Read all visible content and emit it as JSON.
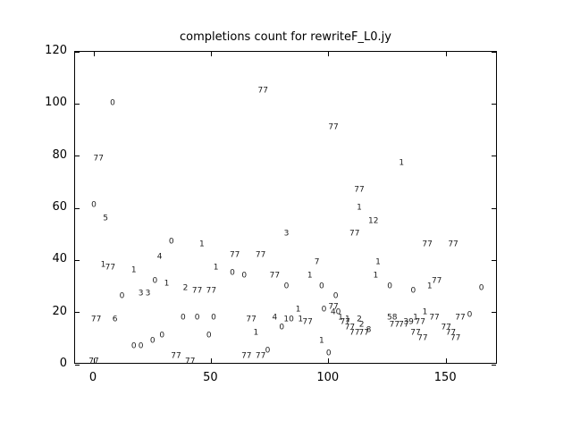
{
  "chart_data": {
    "type": "scatter",
    "title": "completions count for rewriteF_L0.jy",
    "xlabel": "",
    "ylabel": "",
    "xlim": [
      -8,
      172
    ],
    "ylim": [
      0,
      120
    ],
    "xticks": [
      0,
      50,
      100,
      150
    ],
    "yticks": [
      0,
      20,
      40,
      60,
      80,
      100,
      120
    ],
    "grid": false,
    "legend": "none",
    "marker_style": "text-label",
    "colors": {
      "text": "#000000",
      "marker": "#1a1a1a",
      "background": "#ffffff"
    },
    "points": [
      [
        2,
        79,
        "77"
      ],
      [
        8,
        100,
        "0"
      ],
      [
        0,
        61,
        "0"
      ],
      [
        5,
        56,
        "5"
      ],
      [
        4,
        38,
        "1"
      ],
      [
        7,
        37,
        "77"
      ],
      [
        12,
        26,
        "0"
      ],
      [
        1,
        17,
        "77"
      ],
      [
        9,
        17,
        "6"
      ],
      [
        0,
        1,
        "77"
      ],
      [
        17,
        36,
        "1"
      ],
      [
        20,
        27,
        "3"
      ],
      [
        23,
        27,
        "3"
      ],
      [
        26,
        32,
        "0"
      ],
      [
        28,
        41,
        "4"
      ],
      [
        33,
        47,
        "0"
      ],
      [
        31,
        31,
        "1"
      ],
      [
        17,
        7,
        "0"
      ],
      [
        20,
        7,
        "0"
      ],
      [
        25,
        9,
        "0"
      ],
      [
        29,
        11,
        "0"
      ],
      [
        39,
        29,
        "2"
      ],
      [
        44,
        28,
        "77"
      ],
      [
        38,
        18,
        "0"
      ],
      [
        44,
        18,
        "0"
      ],
      [
        35,
        3,
        "77"
      ],
      [
        46,
        46,
        "1"
      ],
      [
        41,
        1,
        "77"
      ],
      [
        50,
        28,
        "77"
      ],
      [
        51,
        18,
        "0"
      ],
      [
        52,
        37,
        "1"
      ],
      [
        49,
        11,
        "0"
      ],
      [
        60,
        42,
        "77"
      ],
      [
        59,
        35,
        "0"
      ],
      [
        64,
        34,
        "0"
      ],
      [
        71,
        42,
        "77"
      ],
      [
        67,
        17,
        "77"
      ],
      [
        69,
        12,
        "1"
      ],
      [
        65,
        3,
        "77"
      ],
      [
        71,
        3,
        "77"
      ],
      [
        74,
        5,
        "0"
      ],
      [
        72,
        105,
        "77"
      ],
      [
        82,
        50,
        "3"
      ],
      [
        77,
        34,
        "77"
      ],
      [
        82,
        30,
        "0"
      ],
      [
        77,
        18,
        "4"
      ],
      [
        87,
        21,
        "1"
      ],
      [
        83,
        17,
        "10"
      ],
      [
        88,
        17,
        "1"
      ],
      [
        80,
        14,
        "0"
      ],
      [
        95,
        39,
        "7"
      ],
      [
        92,
        34,
        "1"
      ],
      [
        97,
        30,
        "0"
      ],
      [
        91,
        16,
        "77"
      ],
      [
        98,
        21,
        "0"
      ],
      [
        97,
        9,
        "1"
      ],
      [
        100,
        4,
        "0"
      ],
      [
        102,
        91,
        "77"
      ],
      [
        103,
        26,
        "0"
      ],
      [
        102,
        22,
        "77"
      ],
      [
        103,
        20,
        "40"
      ],
      [
        105,
        18,
        "1"
      ],
      [
        107,
        16,
        "77"
      ],
      [
        111,
        50,
        "77"
      ],
      [
        113,
        60,
        "1"
      ],
      [
        113,
        67,
        "77"
      ],
      [
        119,
        55,
        "12"
      ],
      [
        108,
        17,
        "1"
      ],
      [
        113,
        17,
        "2"
      ],
      [
        109,
        14,
        "77"
      ],
      [
        114,
        15,
        "2"
      ],
      [
        111,
        12,
        "77"
      ],
      [
        115,
        12,
        "77"
      ],
      [
        117,
        13,
        "8"
      ],
      [
        121,
        39,
        "1"
      ],
      [
        120,
        34,
        "1"
      ],
      [
        126,
        30,
        "0"
      ],
      [
        131,
        77,
        "1"
      ],
      [
        127,
        18,
        "58"
      ],
      [
        128,
        15,
        "77"
      ],
      [
        132,
        15,
        "77"
      ],
      [
        134,
        16,
        "39"
      ],
      [
        136,
        28,
        "0"
      ],
      [
        137,
        18,
        "1"
      ],
      [
        139,
        16,
        "77"
      ],
      [
        137,
        12,
        "77"
      ],
      [
        140,
        10,
        "77"
      ],
      [
        143,
        30,
        "1"
      ],
      [
        146,
        32,
        "77"
      ],
      [
        142,
        46,
        "77"
      ],
      [
        141,
        20,
        "1"
      ],
      [
        145,
        18,
        "77"
      ],
      [
        153,
        46,
        "77"
      ],
      [
        150,
        14,
        "77"
      ],
      [
        152,
        12,
        "77"
      ],
      [
        154,
        10,
        "77"
      ],
      [
        160,
        19,
        "0"
      ],
      [
        156,
        18,
        "77"
      ],
      [
        165,
        29,
        "0"
      ]
    ]
  }
}
